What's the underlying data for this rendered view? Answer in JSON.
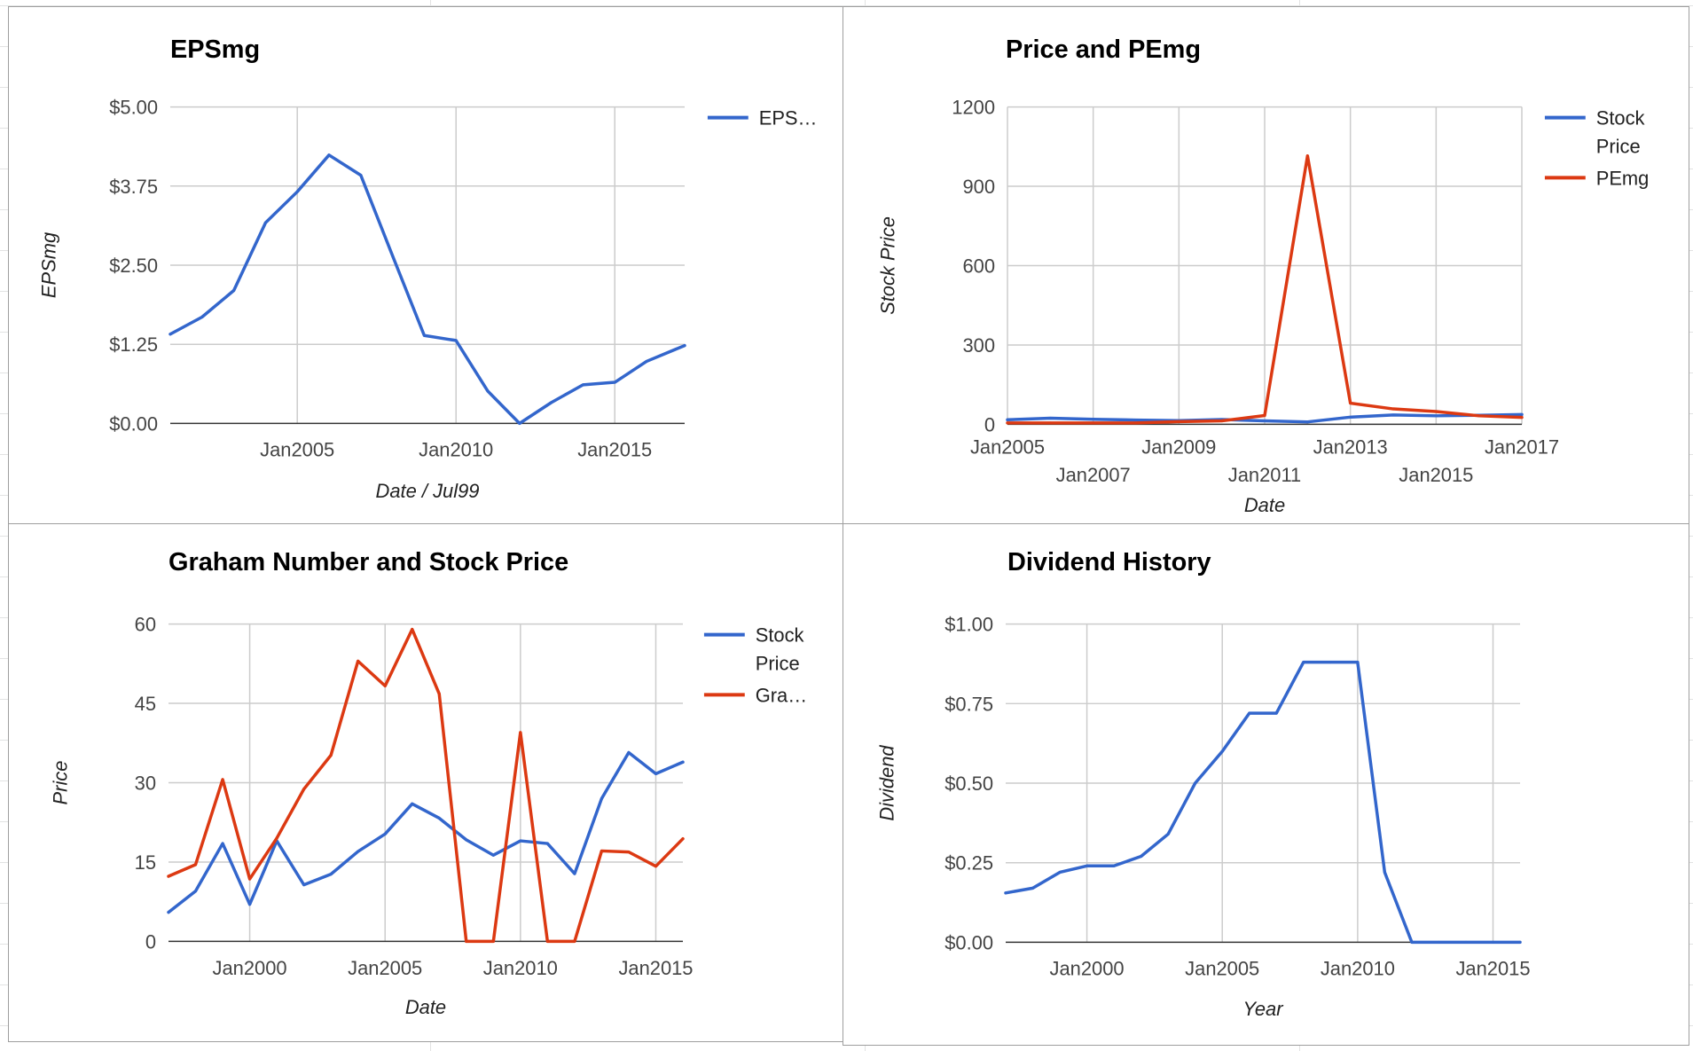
{
  "colors": {
    "blue": "#3366cc",
    "red": "#dc3912"
  },
  "chart_data": [
    {
      "type": "line",
      "title": "EPSmg",
      "xlabel": "Date / Jul99",
      "ylabel": "EPSmg",
      "yticks": [
        "$0.00",
        "$1.25",
        "$2.50",
        "$3.75",
        "$5.00"
      ],
      "ylim": [
        0,
        5
      ],
      "x_tick_labels": [
        {
          "year": 2005,
          "label": "Jan2005",
          "row": 0
        },
        {
          "year": 2010,
          "label": "Jan2010",
          "row": 0
        },
        {
          "year": 2015,
          "label": "Jan2015",
          "row": 0
        }
      ],
      "x_range": [
        2001.0,
        2017.2
      ],
      "x_grid_years": [
        2005,
        2010,
        2015
      ],
      "legend": {
        "position": "right"
      },
      "x": [
        2001.0,
        2002.0,
        2003.0,
        2004.0,
        2005.0,
        2006.0,
        2007.0,
        2008.0,
        2009.0,
        2010.0,
        2011.0,
        2012.0,
        2013.0,
        2014.0,
        2015.0,
        2016.0,
        2017.2
      ],
      "series": [
        {
          "name": "EPS…",
          "color": "#3366cc",
          "values": [
            1.41,
            1.68,
            2.1,
            3.17,
            3.66,
            4.24,
            3.92,
            2.65,
            1.39,
            1.31,
            0.51,
            0.0,
            0.33,
            0.61,
            0.65,
            0.98,
            1.23
          ]
        }
      ]
    },
    {
      "type": "line",
      "title": "Price and PEmg",
      "xlabel": "Date",
      "ylabel": "Stock Price",
      "yticks": [
        "0",
        "300",
        "600",
        "900",
        "1200"
      ],
      "ylim": [
        0,
        1200
      ],
      "x_tick_labels": [
        {
          "year": 2005,
          "label": "Jan2005",
          "row": 0
        },
        {
          "year": 2007,
          "label": "Jan2007",
          "row": 1
        },
        {
          "year": 2009,
          "label": "Jan2009",
          "row": 0
        },
        {
          "year": 2011,
          "label": "Jan2011",
          "row": 1
        },
        {
          "year": 2013,
          "label": "Jan2013",
          "row": 0
        },
        {
          "year": 2015,
          "label": "Jan2015",
          "row": 1
        },
        {
          "year": 2017,
          "label": "Jan2017",
          "row": 0
        }
      ],
      "x_range": [
        2005,
        2017
      ],
      "x_grid_years": [
        2005,
        2007,
        2009,
        2011,
        2013,
        2015,
        2017
      ],
      "legend": {
        "position": "right"
      },
      "x": [
        2005,
        2006,
        2007,
        2008,
        2009,
        2010,
        2011,
        2012,
        2013,
        2014,
        2015,
        2016,
        2017
      ],
      "series": [
        {
          "name": "Stock Price",
          "color": "#3366cc",
          "values": [
            17,
            23,
            19,
            16,
            14,
            18,
            13,
            9,
            27,
            35,
            32,
            34,
            37
          ]
        },
        {
          "name": "PEmg",
          "color": "#dc3912",
          "values": [
            5,
            5,
            5,
            5,
            10,
            13,
            33,
            1015,
            80,
            58,
            48,
            32,
            26
          ]
        }
      ]
    },
    {
      "type": "line",
      "title": "Graham Number and Stock Price",
      "xlabel": "Date",
      "ylabel": "Price",
      "yticks": [
        "0",
        "15",
        "30",
        "45",
        "60"
      ],
      "ylim": [
        0,
        60
      ],
      "x_tick_labels": [
        {
          "year": 2000,
          "label": "Jan2000",
          "row": 0
        },
        {
          "year": 2005,
          "label": "Jan2005",
          "row": 0
        },
        {
          "year": 2010,
          "label": "Jan2010",
          "row": 0
        },
        {
          "year": 2015,
          "label": "Jan2015",
          "row": 0
        }
      ],
      "x_range": [
        1997.0,
        2016.0
      ],
      "x_grid_years": [
        2000,
        2005,
        2010,
        2015
      ],
      "legend": {
        "position": "right"
      },
      "x": [
        1997,
        1998,
        1999,
        2000,
        2001,
        2002,
        2003,
        2004,
        2005,
        2006,
        2007,
        2008,
        2009,
        2010,
        2011,
        2012,
        2013,
        2014,
        2015,
        2016
      ],
      "series": [
        {
          "name": "Stock Price",
          "color": "#3366cc",
          "values": [
            5.5,
            9.5,
            18.5,
            7.0,
            19.0,
            10.7,
            12.7,
            17.0,
            20.3,
            26.0,
            23.3,
            19.2,
            16.3,
            19.0,
            18.5,
            12.8,
            27.0,
            35.7,
            31.7,
            33.9
          ]
        },
        {
          "name": "Gra…",
          "color": "#dc3912",
          "values": [
            12.3,
            14.5,
            30.6,
            11.8,
            19.5,
            28.8,
            35.2,
            53.0,
            48.3,
            59.0,
            46.8,
            0.0,
            0.0,
            39.5,
            0.0,
            0.0,
            17.1,
            16.9,
            14.2,
            19.4
          ]
        }
      ]
    },
    {
      "type": "line",
      "title": "Dividend History",
      "xlabel": "Year",
      "ylabel": "Dividend",
      "yticks": [
        "$0.00",
        "$0.25",
        "$0.50",
        "$0.75",
        "$1.00"
      ],
      "ylim": [
        0,
        1
      ],
      "x_tick_labels": [
        {
          "year": 2000,
          "label": "Jan2000",
          "row": 0
        },
        {
          "year": 2005,
          "label": "Jan2005",
          "row": 0
        },
        {
          "year": 2010,
          "label": "Jan2010",
          "row": 0
        },
        {
          "year": 2015,
          "label": "Jan2015",
          "row": 0
        }
      ],
      "x_range": [
        1997.0,
        2016.0
      ],
      "x_grid_years": [
        2000,
        2005,
        2010,
        2015
      ],
      "legend": null,
      "x": [
        1997,
        1998,
        1999,
        2000,
        2001,
        2002,
        2003,
        2004,
        2005,
        2006,
        2007,
        2008,
        2009,
        2010,
        2011,
        2012,
        2013,
        2014,
        2015,
        2016
      ],
      "series": [
        {
          "name": "",
          "color": "#3366cc",
          "values": [
            0.155,
            0.17,
            0.22,
            0.24,
            0.24,
            0.27,
            0.34,
            0.5,
            0.6,
            0.72,
            0.72,
            0.88,
            0.88,
            0.88,
            0.22,
            0.0,
            0.0,
            0.0,
            0.0,
            0.0
          ]
        }
      ]
    }
  ]
}
